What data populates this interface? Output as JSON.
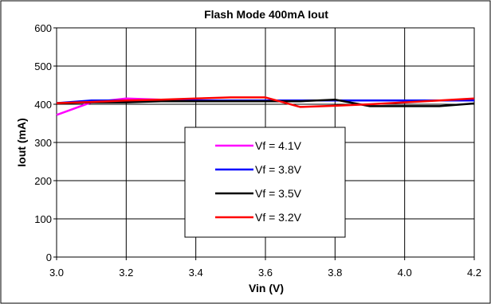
{
  "chart_data": {
    "type": "line",
    "title": "Flash Mode 400mA Iout",
    "xlabel": "Vin (V)",
    "ylabel": "Iout (mA)",
    "xlim": [
      3.0,
      4.2
    ],
    "ylim": [
      0,
      600
    ],
    "xticks": [
      "3.0",
      "3.2",
      "3.4",
      "3.6",
      "3.8",
      "4.0",
      "4.2"
    ],
    "yticks": [
      "0",
      "100",
      "200",
      "300",
      "400",
      "500",
      "600"
    ],
    "grid": true,
    "legend_position": "center-bottom",
    "x": [
      3.0,
      3.1,
      3.2,
      3.3,
      3.4,
      3.5,
      3.6,
      3.7,
      3.8,
      3.9,
      4.0,
      4.1,
      4.2
    ],
    "series": [
      {
        "name": "Vf = 4.1V",
        "color": "#FF00FF",
        "values": [
          372,
          405,
          415,
          412,
          410,
          410,
          410,
          410,
          410,
          410,
          410,
          410,
          410
        ]
      },
      {
        "name": "Vf = 3.8V",
        "color": "#0000FF",
        "values": [
          403,
          410,
          410,
          410,
          410,
          410,
          410,
          410,
          410,
          410,
          410,
          410,
          410
        ]
      },
      {
        "name": "Vf = 3.5V",
        "color": "#000000",
        "values": [
          403,
          405,
          405,
          408,
          408,
          408,
          408,
          408,
          412,
          395,
          395,
          395,
          402
        ]
      },
      {
        "name": "Vf = 3.2V",
        "color": "#FF0000",
        "values": [
          403,
          406,
          410,
          412,
          415,
          418,
          418,
          393,
          396,
          400,
          405,
          410,
          415
        ]
      }
    ]
  }
}
